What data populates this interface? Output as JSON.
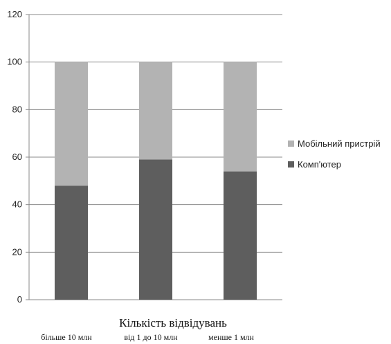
{
  "chart_data": {
    "type": "bar",
    "stacked": true,
    "categories": [
      "більше 10 млн",
      "від 1 до 10 млн",
      "менше 1 млн"
    ],
    "series": [
      {
        "name": "Комп'ютер",
        "values": [
          48,
          59,
          54
        ],
        "color": "#5e5e5e"
      },
      {
        "name": "Мобільний пристрій",
        "values": [
          52,
          41,
          46
        ],
        "color": "#b3b3b3"
      }
    ],
    "xlabel": "Кількість відвідувань",
    "ylabel": "",
    "ylim": [
      0,
      120
    ],
    "yticks": [
      0,
      20,
      40,
      60,
      80,
      100,
      120
    ],
    "grid": true,
    "legend_position": "right",
    "legend_order": [
      "Мобільний пристрій",
      "Комп'ютер"
    ]
  }
}
